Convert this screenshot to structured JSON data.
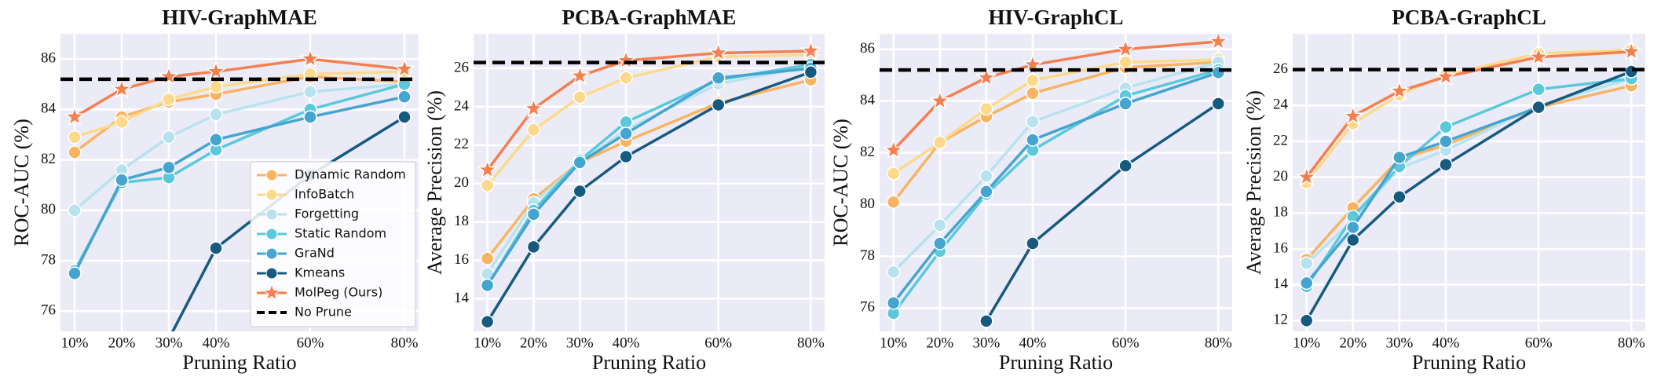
{
  "chart_data": [
    {
      "type": "line",
      "title": "HIV-GraphMAE",
      "xlabel": "Pruning Ratio",
      "ylabel": "ROC-AUC (%)",
      "x": [
        10,
        20,
        30,
        40,
        60,
        80
      ],
      "xlim": [
        7,
        83
      ],
      "xticks": [
        {
          "value": 10,
          "label": "10%"
        },
        {
          "value": 20,
          "label": "20%"
        },
        {
          "value": 30,
          "label": "30%"
        },
        {
          "value": 40,
          "label": "40%"
        },
        {
          "value": 60,
          "label": "60%"
        },
        {
          "value": 80,
          "label": "80%"
        }
      ],
      "ylim": [
        75.2,
        87
      ],
      "yticks": [
        76,
        78,
        80,
        82,
        84,
        86
      ],
      "grid": true,
      "legend": "lower right",
      "series": [
        {
          "name": "Dynamic Random",
          "color": "#f8b463",
          "marker": "circle",
          "values": [
            82.3,
            83.7,
            84.3,
            84.6,
            85.3,
            85.1
          ]
        },
        {
          "name": "InfoBatch",
          "color": "#fdd98c",
          "marker": "circle",
          "values": [
            82.9,
            83.5,
            84.4,
            84.9,
            85.4,
            85.5
          ]
        },
        {
          "name": "Forgetting",
          "color": "#b7e3ef",
          "marker": "circle",
          "values": [
            80.0,
            81.6,
            82.9,
            83.8,
            84.7,
            85.0
          ]
        },
        {
          "name": "Static Random",
          "color": "#5bc8dc",
          "marker": "circle",
          "values": [
            77.6,
            81.1,
            81.3,
            82.4,
            84.0,
            85.0
          ]
        },
        {
          "name": "GraNd",
          "color": "#45a5cf",
          "marker": "circle",
          "values": [
            77.5,
            81.2,
            81.7,
            82.8,
            83.7,
            84.5
          ]
        },
        {
          "name": "Kmeans",
          "color": "#175a80",
          "marker": "circle",
          "values": [
            null,
            null,
            74.9,
            78.5,
            81.4,
            83.7
          ]
        },
        {
          "name": "MolPeg (Ours)",
          "color": "#f47f4f",
          "marker": "star",
          "values": [
            83.7,
            84.8,
            85.3,
            85.5,
            86.0,
            85.6
          ]
        }
      ],
      "baseline": {
        "name": "No Prune",
        "value": 85.2,
        "color": "#000000"
      }
    },
    {
      "type": "line",
      "title": "PCBA-GraphMAE",
      "xlabel": "Pruning Ratio",
      "ylabel": "Average Precision (%)",
      "x": [
        10,
        20,
        30,
        40,
        60,
        80
      ],
      "xlim": [
        7,
        83
      ],
      "xticks": [
        {
          "value": 10,
          "label": "10%"
        },
        {
          "value": 20,
          "label": "20%"
        },
        {
          "value": 30,
          "label": "30%"
        },
        {
          "value": 40,
          "label": "40%"
        },
        {
          "value": 60,
          "label": "60%"
        },
        {
          "value": 80,
          "label": "80%"
        }
      ],
      "ylim": [
        12.3,
        27.8
      ],
      "yticks": [
        14,
        16,
        18,
        20,
        22,
        24,
        26
      ],
      "grid": true,
      "series": [
        {
          "name": "Dynamic Random",
          "color": "#f8b463",
          "marker": "circle",
          "values": [
            16.1,
            19.2,
            21.1,
            22.2,
            24.2,
            25.4
          ]
        },
        {
          "name": "InfoBatch",
          "color": "#fdd98c",
          "marker": "circle",
          "values": [
            19.9,
            22.8,
            24.5,
            25.5,
            26.6,
            26.7
          ]
        },
        {
          "name": "Forgetting",
          "color": "#b7e3ef",
          "marker": "circle",
          "values": [
            15.3,
            19.0,
            21.1,
            22.8,
            25.2,
            26.1
          ]
        },
        {
          "name": "Static Random",
          "color": "#5bc8dc",
          "marker": "circle",
          "values": [
            14.7,
            18.6,
            21.2,
            23.2,
            25.4,
            26.2
          ]
        },
        {
          "name": "GraNd",
          "color": "#45a5cf",
          "marker": "circle",
          "values": [
            14.7,
            18.4,
            21.1,
            22.6,
            25.5,
            26.0
          ]
        },
        {
          "name": "Kmeans",
          "color": "#175a80",
          "marker": "circle",
          "values": [
            12.8,
            16.7,
            19.6,
            21.4,
            24.1,
            25.8
          ]
        },
        {
          "name": "MolPeg (Ours)",
          "color": "#f47f4f",
          "marker": "star",
          "values": [
            20.7,
            23.9,
            25.6,
            26.4,
            26.8,
            26.9
          ]
        }
      ],
      "baseline": {
        "name": "No Prune",
        "value": 26.3,
        "color": "#000000"
      }
    },
    {
      "type": "line",
      "title": "HIV-GraphCL",
      "xlabel": "Pruning Ratio",
      "ylabel": "ROC-AUC (%)",
      "x": [
        10,
        20,
        30,
        40,
        60,
        80
      ],
      "xlim": [
        7,
        83
      ],
      "xticks": [
        {
          "value": 10,
          "label": "10%"
        },
        {
          "value": 20,
          "label": "20%"
        },
        {
          "value": 30,
          "label": "30%"
        },
        {
          "value": 40,
          "label": "40%"
        },
        {
          "value": 60,
          "label": "60%"
        },
        {
          "value": 80,
          "label": "80%"
        }
      ],
      "ylim": [
        75.1,
        86.6
      ],
      "yticks": [
        76,
        78,
        80,
        82,
        84,
        86
      ],
      "grid": true,
      "series": [
        {
          "name": "Dynamic Random",
          "color": "#f8b463",
          "marker": "circle",
          "values": [
            80.1,
            82.4,
            83.4,
            84.3,
            85.3,
            85.5
          ]
        },
        {
          "name": "InfoBatch",
          "color": "#fdd98c",
          "marker": "circle",
          "values": [
            81.2,
            82.4,
            83.7,
            84.8,
            85.5,
            85.6
          ]
        },
        {
          "name": "Forgetting",
          "color": "#b7e3ef",
          "marker": "circle",
          "values": [
            77.4,
            79.2,
            81.1,
            83.2,
            84.5,
            85.5
          ]
        },
        {
          "name": "Static Random",
          "color": "#5bc8dc",
          "marker": "circle",
          "values": [
            75.8,
            78.2,
            80.4,
            82.1,
            84.2,
            85.2
          ]
        },
        {
          "name": "GraNd",
          "color": "#45a5cf",
          "marker": "circle",
          "values": [
            76.2,
            78.5,
            80.5,
            82.5,
            83.9,
            85.1
          ]
        },
        {
          "name": "Kmeans",
          "color": "#175a80",
          "marker": "circle",
          "values": [
            null,
            null,
            75.5,
            78.5,
            81.5,
            83.9
          ]
        },
        {
          "name": "MolPeg (Ours)",
          "color": "#f47f4f",
          "marker": "star",
          "values": [
            82.1,
            84.0,
            84.9,
            85.4,
            86.0,
            86.3
          ]
        }
      ],
      "baseline": {
        "name": "No Prune",
        "value": 85.2,
        "color": "#000000"
      }
    },
    {
      "type": "line",
      "title": "PCBA-GraphCL",
      "xlabel": "Pruning Ratio",
      "ylabel": "Average Precision (%)",
      "x": [
        10,
        20,
        30,
        40,
        60,
        80
      ],
      "xlim": [
        7,
        83
      ],
      "xticks": [
        {
          "value": 10,
          "label": "10%"
        },
        {
          "value": 20,
          "label": "20%"
        },
        {
          "value": 30,
          "label": "30%"
        },
        {
          "value": 40,
          "label": "40%"
        },
        {
          "value": 60,
          "label": "60%"
        },
        {
          "value": 80,
          "label": "80%"
        }
      ],
      "ylim": [
        11.4,
        28
      ],
      "yticks": [
        12,
        14,
        16,
        18,
        20,
        22,
        24,
        26
      ],
      "grid": true,
      "series": [
        {
          "name": "Dynamic Random",
          "color": "#f8b463",
          "marker": "circle",
          "values": [
            15.4,
            18.3,
            21.0,
            21.8,
            23.9,
            25.1
          ]
        },
        {
          "name": "InfoBatch",
          "color": "#fdd98c",
          "marker": "circle",
          "values": [
            19.7,
            23.0,
            24.6,
            25.7,
            26.9,
            27.1
          ]
        },
        {
          "name": "Forgetting",
          "color": "#b7e3ef",
          "marker": "circle",
          "values": [
            15.2,
            17.6,
            20.5,
            21.5,
            24.0,
            25.5
          ]
        },
        {
          "name": "Static Random",
          "color": "#5bc8dc",
          "marker": "circle",
          "values": [
            13.9,
            17.8,
            20.6,
            22.8,
            24.9,
            25.5
          ]
        },
        {
          "name": "GraNd",
          "color": "#45a5cf",
          "marker": "circle",
          "values": [
            14.1,
            17.2,
            21.1,
            22.0,
            23.9,
            25.9
          ]
        },
        {
          "name": "Kmeans",
          "color": "#175a80",
          "marker": "circle",
          "values": [
            12.0,
            16.5,
            18.9,
            20.7,
            23.9,
            25.9
          ]
        },
        {
          "name": "MolPeg (Ours)",
          "color": "#f47f4f",
          "marker": "star",
          "values": [
            20.0,
            23.4,
            24.8,
            25.6,
            26.7,
            27.0
          ]
        }
      ],
      "baseline": {
        "name": "No Prune",
        "value": 26.0,
        "color": "#000000"
      }
    }
  ]
}
